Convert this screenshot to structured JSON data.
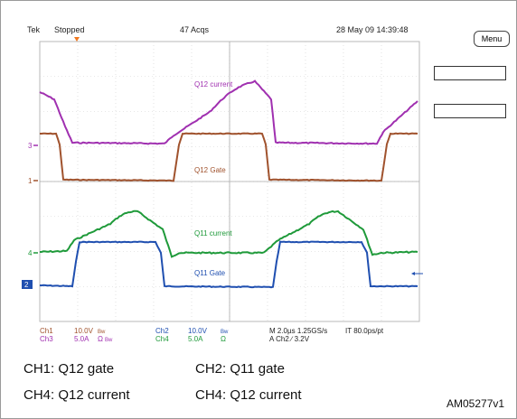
{
  "header": {
    "brand": "Tek",
    "status": "Stopped",
    "acquisitions": "47 Acqs",
    "datetime": "28 May 09 14:39:48"
  },
  "menu_label": "Menu",
  "trace_labels": {
    "q12_current": "Q12 current",
    "q12_gate": "Q12 Gate",
    "q11_current": "Q11 current",
    "q11_gate": "Q11 Gate"
  },
  "channel_markers": {
    "m3": "3",
    "m1": "1",
    "m4": "4",
    "m2": "2"
  },
  "readout": {
    "ch1_name": "Ch1",
    "ch1_scale": "10.0V",
    "ch1_bw": "Bw",
    "ch3_name": "Ch3",
    "ch3_scale": "5.0A",
    "ch3_unit": "Ω",
    "ch3_bw": "Bw",
    "ch2_name": "Ch2",
    "ch2_scale": "10.0V",
    "ch2_bw": "Bw",
    "ch4_name": "Ch4",
    "ch4_scale": "5.0A",
    "ch4_unit": "Ω",
    "timebase": "M 2.0µs 1.25GS/s",
    "interp": "IT 80.0ps/pt",
    "trigger": "A  Ch2  ∕  3.2V"
  },
  "legend": {
    "row1_left": "CH1:  Q12 gate",
    "row1_right": "CH2:  Q11 gate",
    "row2_left": "CH4:  Q12 current",
    "row2_right": "CH4:  Q12 current"
  },
  "figure_code": "AM05277v1",
  "colors": {
    "q12_current": "#a030b0",
    "q12_gate": "#a0522d",
    "q11_current": "#1f9a3a",
    "q11_gate": "#1f4fb0",
    "grid": "#b8b8b8",
    "trigger_marker": "#f07820"
  }
}
